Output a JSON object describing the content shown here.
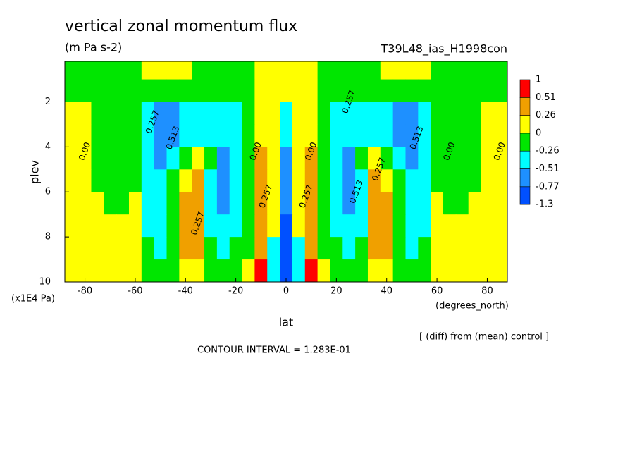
{
  "chart_data": {
    "type": "contour",
    "title": "vertical zonal momentum flux",
    "subtitle": "(m Pa s-2)",
    "run_label": "T39L48_ias_H1998con",
    "x_label": "lat",
    "x_unit": "(degrees_north)",
    "y_label": "plev",
    "y_unit": "(x1E4 Pa)",
    "note": "[ (diff) from (mean) control ]",
    "contour_interval": "CONTOUR INTERVAL = 1.283E-01",
    "xlim": [
      -88,
      88
    ],
    "ylim": [
      10,
      0.2
    ],
    "xticks": [
      -80,
      -60,
      -40,
      -20,
      0,
      20,
      40,
      60,
      80
    ],
    "yticks": [
      2,
      4,
      6,
      8,
      10
    ],
    "levels": [
      -1.3,
      -0.77,
      -0.51,
      -0.26,
      0,
      0.26,
      0.51,
      1
    ],
    "level_colors": [
      "#0050ff",
      "#1e90ff",
      "#00ffff",
      "#00e600",
      "#ffff00",
      "#f0a000",
      "#ff0000"
    ],
    "x": [
      -85,
      -80,
      -75,
      -70,
      -65,
      -60,
      -55,
      -50,
      -45,
      -40,
      -35,
      -30,
      -25,
      -20,
      -15,
      -10,
      -5,
      0,
      5,
      10,
      15,
      20,
      25,
      30,
      35,
      40,
      45,
      50,
      55,
      60,
      65,
      70,
      75,
      80,
      85
    ],
    "y": [
      0.5,
      1.5,
      2.5,
      3.5,
      4.5,
      5.5,
      6.5,
      7.5,
      8.5,
      9.5
    ],
    "z": [
      [
        -0.1,
        -0.1,
        -0.1,
        -0.1,
        -0.1,
        -0.1,
        0.1,
        0.1,
        0.1,
        0.1,
        -0.1,
        -0.1,
        -0.1,
        -0.1,
        -0.1,
        0.1,
        0.1,
        0.1,
        0.1,
        0.1,
        -0.1,
        -0.1,
        -0.1,
        -0.1,
        -0.1,
        0.1,
        0.1,
        0.1,
        0.1,
        -0.1,
        -0.1,
        -0.1,
        -0.1,
        -0.1,
        -0.1
      ],
      [
        -0.1,
        -0.1,
        -0.1,
        -0.1,
        -0.1,
        -0.1,
        -0.1,
        -0.1,
        -0.1,
        -0.1,
        -0.1,
        -0.1,
        -0.1,
        -0.1,
        -0.1,
        0.1,
        0.1,
        0.1,
        0.1,
        0.1,
        -0.1,
        -0.1,
        -0.1,
        -0.1,
        -0.1,
        -0.1,
        -0.1,
        -0.1,
        -0.1,
        -0.1,
        -0.1,
        -0.1,
        -0.1,
        -0.1,
        -0.1
      ],
      [
        0.1,
        0.1,
        -0.1,
        -0.1,
        -0.1,
        -0.1,
        -0.35,
        -0.6,
        -0.6,
        -0.35,
        -0.35,
        -0.35,
        -0.35,
        -0.35,
        -0.1,
        0.1,
        0.1,
        -0.35,
        0.1,
        0.1,
        -0.1,
        -0.35,
        -0.35,
        -0.35,
        -0.35,
        -0.35,
        -0.6,
        -0.6,
        -0.35,
        -0.1,
        -0.1,
        -0.1,
        -0.1,
        0.1,
        0.1
      ],
      [
        0.1,
        0.1,
        -0.1,
        -0.1,
        -0.1,
        -0.1,
        -0.35,
        -0.6,
        -0.6,
        -0.35,
        -0.35,
        -0.35,
        -0.35,
        -0.35,
        -0.1,
        0.1,
        0.1,
        -0.35,
        0.1,
        0.1,
        -0.1,
        -0.35,
        -0.35,
        -0.35,
        -0.35,
        -0.35,
        -0.6,
        -0.6,
        -0.35,
        -0.1,
        -0.1,
        -0.1,
        -0.1,
        0.1,
        0.1
      ],
      [
        0.1,
        0.1,
        -0.1,
        -0.1,
        -0.1,
        -0.1,
        -0.35,
        -0.6,
        -0.35,
        -0.1,
        0.1,
        -0.1,
        -0.6,
        -0.35,
        -0.1,
        0.35,
        0.1,
        -0.6,
        0.1,
        0.35,
        -0.1,
        -0.35,
        -0.6,
        -0.1,
        0.1,
        -0.1,
        -0.35,
        -0.6,
        -0.35,
        -0.1,
        -0.1,
        -0.1,
        -0.1,
        0.1,
        0.1
      ],
      [
        0.1,
        0.1,
        -0.1,
        -0.1,
        -0.1,
        -0.1,
        -0.35,
        -0.35,
        -0.1,
        0.1,
        0.35,
        -0.35,
        -0.6,
        -0.35,
        -0.1,
        0.35,
        0.1,
        -0.6,
        0.1,
        0.35,
        -0.1,
        -0.35,
        -0.6,
        -0.35,
        0.35,
        0.1,
        -0.1,
        -0.35,
        -0.35,
        -0.1,
        -0.1,
        -0.1,
        -0.1,
        0.1,
        0.1
      ],
      [
        0.1,
        0.1,
        0.1,
        -0.1,
        -0.1,
        0.1,
        -0.35,
        -0.35,
        -0.1,
        0.35,
        0.35,
        -0.35,
        -0.6,
        -0.35,
        -0.1,
        0.35,
        0.1,
        -0.6,
        0.1,
        0.35,
        -0.1,
        -0.35,
        -0.6,
        -0.35,
        0.35,
        0.35,
        -0.1,
        -0.35,
        -0.35,
        0.1,
        -0.1,
        -0.1,
        0.1,
        0.1,
        0.1
      ],
      [
        0.1,
        0.1,
        0.1,
        0.1,
        0.1,
        0.1,
        -0.35,
        -0.35,
        -0.1,
        0.35,
        0.35,
        -0.35,
        -0.35,
        -0.35,
        -0.1,
        0.35,
        0.1,
        -0.9,
        0.1,
        0.35,
        -0.1,
        -0.35,
        -0.35,
        -0.35,
        0.35,
        0.35,
        -0.1,
        -0.35,
        -0.35,
        0.1,
        0.1,
        0.1,
        0.1,
        0.1,
        0.1
      ],
      [
        0.1,
        0.1,
        0.1,
        0.1,
        0.1,
        0.1,
        -0.1,
        -0.35,
        -0.1,
        0.35,
        0.35,
        -0.1,
        -0.35,
        -0.1,
        -0.1,
        0.35,
        -0.35,
        -0.9,
        -0.35,
        0.35,
        -0.1,
        -0.1,
        -0.35,
        -0.1,
        0.35,
        0.35,
        -0.1,
        -0.35,
        -0.1,
        0.1,
        0.1,
        0.1,
        0.1,
        0.1,
        0.1
      ],
      [
        0.1,
        0.1,
        0.1,
        0.1,
        0.1,
        0.1,
        -0.1,
        -0.1,
        -0.1,
        0.1,
        0.1,
        -0.1,
        -0.1,
        -0.1,
        0.1,
        0.7,
        -0.35,
        -0.9,
        -0.35,
        0.7,
        0.1,
        -0.1,
        -0.1,
        -0.1,
        0.1,
        0.1,
        -0.1,
        -0.1,
        -0.1,
        0.1,
        0.1,
        0.1,
        0.1,
        0.1,
        0.1
      ]
    ],
    "contour_labels": [
      {
        "text": "0.00",
        "x": -80,
        "y": 4.2
      },
      {
        "text": "0.257",
        "x": -53,
        "y": 2.9
      },
      {
        "text": "0.513",
        "x": -45,
        "y": 3.6
      },
      {
        "text": "0.257",
        "x": -35,
        "y": 7.4
      },
      {
        "text": "0.00",
        "x": -12,
        "y": 4.2
      },
      {
        "text": "0.257",
        "x": -8,
        "y": 6.2
      },
      {
        "text": "0.257",
        "x": 8,
        "y": 6.2
      },
      {
        "text": "0.00",
        "x": 10,
        "y": 4.2
      },
      {
        "text": "0.257",
        "x": 25,
        "y": 2.0
      },
      {
        "text": "0.513",
        "x": 28,
        "y": 6.0
      },
      {
        "text": "0.257",
        "x": 37,
        "y": 5.0
      },
      {
        "text": "0.513",
        "x": 52,
        "y": 3.6
      },
      {
        "text": "0.00",
        "x": 65,
        "y": 4.2
      },
      {
        "text": "0.00",
        "x": 85,
        "y": 4.2
      }
    ]
  }
}
